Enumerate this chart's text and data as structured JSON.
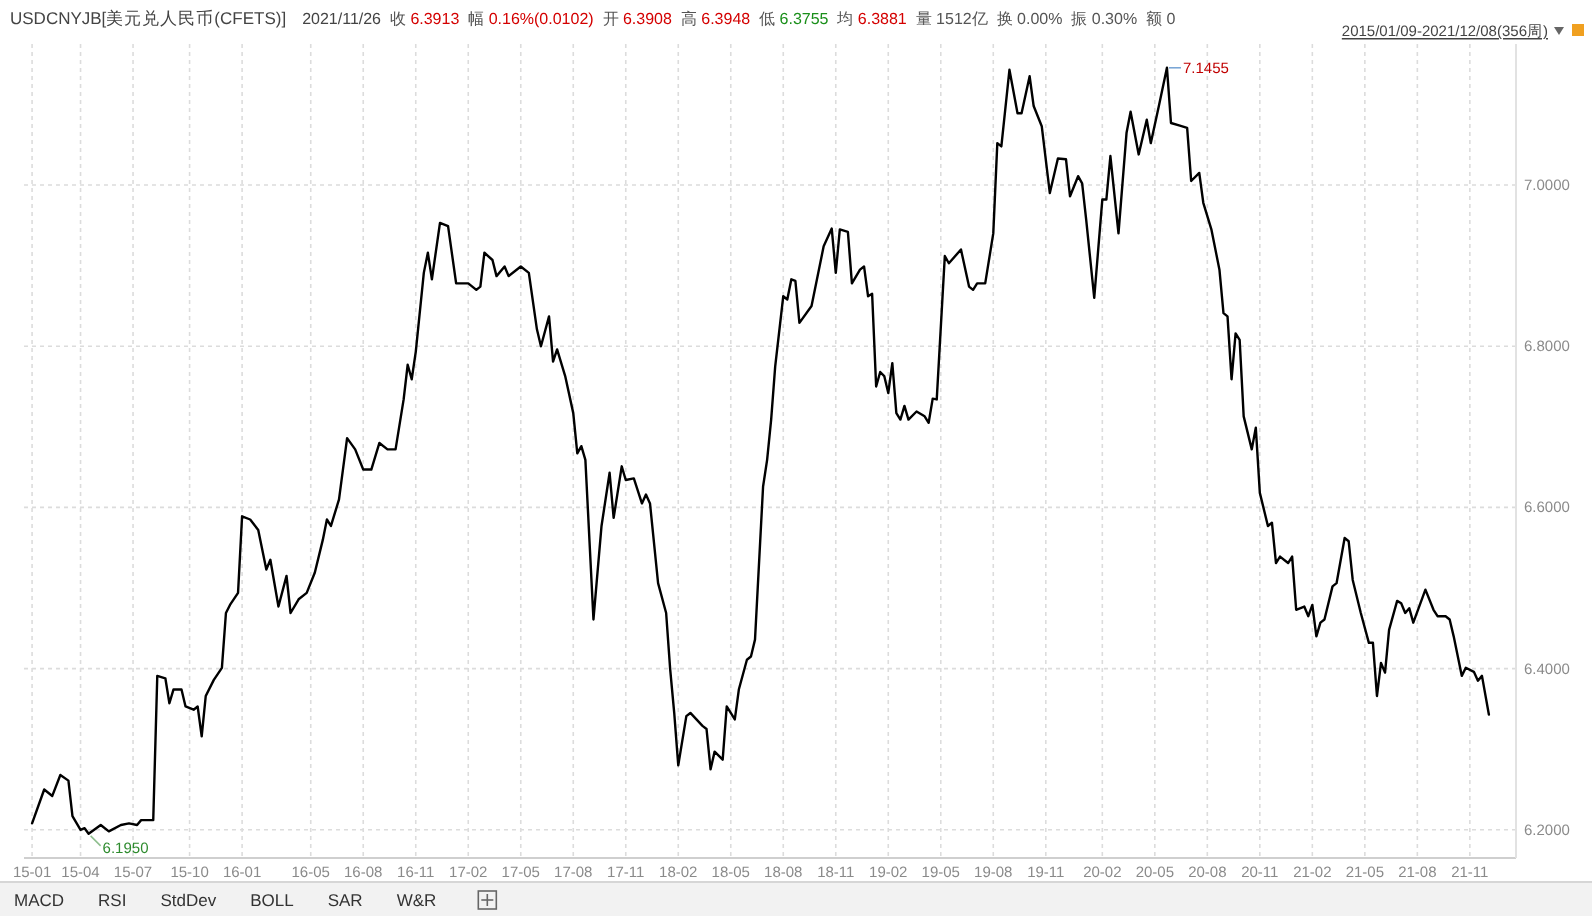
{
  "chart_data": {
    "type": "line",
    "title": "USDCNYJB[美元兑人民币(CFETS)]",
    "subtitle": "2021/11/26  收 6.3913  幅 0.16%(0.0102)  开 6.3908  高 6.3948  低 6.3755  均 6.3881  量 1512亿  换 0.00%  振 0.30%  额 0",
    "annotations": [
      "2015/01/09-2021/12/08(356周)",
      "MACD",
      "RSI",
      "StdDev",
      "BOLL",
      "SAR",
      "W&R",
      {
        "text": "7.1455",
        "x": "2020-05-29",
        "y": 7.1455
      },
      {
        "text": "6.1950",
        "x": "2015-04-17",
        "y": 6.195
      }
    ],
    "x": [
      "2015-01-09",
      "2015-01-30",
      "2015-02-13",
      "2015-02-27",
      "2015-03-13",
      "2015-03-20",
      "2015-04-03",
      "2015-04-10",
      "2015-04-17",
      "2015-05-08",
      "2015-05-22",
      "2015-06-12",
      "2015-06-26",
      "2015-07-10",
      "2015-07-17",
      "2015-08-07",
      "2015-08-14",
      "2015-08-28",
      "2015-09-04",
      "2015-09-11",
      "2015-09-25",
      "2015-10-02",
      "2015-10-16",
      "2015-10-23",
      "2015-10-30",
      "2015-11-06",
      "2015-11-20",
      "2015-12-04",
      "2015-12-11",
      "2015-12-18",
      "2016-01-01",
      "2016-01-08",
      "2016-01-22",
      "2016-02-05",
      "2016-02-19",
      "2016-02-26",
      "2016-03-11",
      "2016-03-25",
      "2016-04-01",
      "2016-04-15",
      "2016-04-29",
      "2016-05-13",
      "2016-05-27",
      "2016-06-03",
      "2016-06-10",
      "2016-06-24",
      "2016-07-08",
      "2016-07-22",
      "2016-08-05",
      "2016-08-19",
      "2016-09-02",
      "2016-09-16",
      "2016-09-30",
      "2016-10-14",
      "2016-10-21",
      "2016-10-28",
      "2016-11-04",
      "2016-11-18",
      "2016-11-25",
      "2016-12-02",
      "2016-12-16",
      "2016-12-30",
      "2017-01-13",
      "2017-02-03",
      "2017-02-17",
      "2017-02-24",
      "2017-03-03",
      "2017-03-17",
      "2017-03-24",
      "2017-04-07",
      "2017-04-14",
      "2017-05-05",
      "2017-05-19",
      "2017-06-02",
      "2017-06-09",
      "2017-06-23",
      "2017-06-30",
      "2017-07-07",
      "2017-07-21",
      "2017-08-04",
      "2017-08-11",
      "2017-08-18",
      "2017-08-25",
      "2017-09-08",
      "2017-09-22",
      "2017-10-06",
      "2017-10-13",
      "2017-10-27",
      "2017-11-03",
      "2017-11-17",
      "2017-12-01",
      "2017-12-08",
      "2017-12-15",
      "2017-12-29",
      "2018-01-12",
      "2018-01-19",
      "2018-01-26",
      "2018-02-02",
      "2018-02-16",
      "2018-02-23",
      "2018-03-16",
      "2018-03-23",
      "2018-03-30",
      "2018-04-06",
      "2018-04-20",
      "2018-04-27",
      "2018-05-11",
      "2018-05-18",
      "2018-06-01",
      "2018-06-08",
      "2018-06-15",
      "2018-06-29",
      "2018-07-06",
      "2018-07-13",
      "2018-07-20",
      "2018-08-03",
      "2018-08-10",
      "2018-08-17",
      "2018-08-24",
      "2018-08-31",
      "2018-09-21",
      "2018-10-12",
      "2018-10-26",
      "2018-11-02",
      "2018-11-09",
      "2018-11-23",
      "2018-11-30",
      "2018-12-14",
      "2018-12-21",
      "2018-12-28",
      "2019-01-04",
      "2019-01-11",
      "2019-01-18",
      "2019-01-25",
      "2019-02-01",
      "2019-02-08",
      "2019-02-15",
      "2019-02-22",
      "2019-03-01",
      "2019-03-08",
      "2019-03-22",
      "2019-04-05",
      "2019-04-12",
      "2019-04-19",
      "2019-04-26",
      "2019-05-10",
      "2019-05-17",
      "2019-06-07",
      "2019-06-21",
      "2019-06-28",
      "2019-07-05",
      "2019-07-19",
      "2019-08-02",
      "2019-08-09",
      "2019-08-16",
      "2019-08-30",
      "2019-09-13",
      "2019-09-20",
      "2019-10-04",
      "2019-10-11",
      "2019-10-25",
      "2019-11-08",
      "2019-11-22",
      "2019-12-06",
      "2019-12-13",
      "2019-12-27",
      "2020-01-03",
      "2020-01-10",
      "2020-01-24",
      "2020-02-07",
      "2020-02-14",
      "2020-02-21",
      "2020-03-06",
      "2020-03-20",
      "2020-03-27",
      "2020-04-10",
      "2020-04-24",
      "2020-05-01",
      "2020-05-15",
      "2020-05-29",
      "2020-06-05",
      "2020-06-19",
      "2020-07-03",
      "2020-07-10",
      "2020-07-24",
      "2020-07-31",
      "2020-08-14",
      "2020-08-28",
      "2020-09-04",
      "2020-09-11",
      "2020-09-18",
      "2020-09-25",
      "2020-10-02",
      "2020-10-09",
      "2020-10-23",
      "2020-10-30",
      "2020-11-06",
      "2020-11-20",
      "2020-11-27",
      "2020-12-04",
      "2020-12-11",
      "2020-12-25",
      "2021-01-01",
      "2021-01-08",
      "2021-01-22",
      "2021-01-29",
      "2021-02-05",
      "2021-02-12",
      "2021-02-19",
      "2021-02-26",
      "2021-03-12",
      "2021-03-19",
      "2021-04-02",
      "2021-04-09",
      "2021-04-16",
      "2021-04-30",
      "2021-05-14",
      "2021-05-21",
      "2021-05-28",
      "2021-06-04",
      "2021-06-11",
      "2021-06-18",
      "2021-07-02",
      "2021-07-09",
      "2021-07-16",
      "2021-07-23",
      "2021-07-30",
      "2021-08-20",
      "2021-09-03",
      "2021-09-10",
      "2021-09-24",
      "2021-10-01",
      "2021-10-08",
      "2021-10-22",
      "2021-10-29",
      "2021-11-12",
      "2021-11-19",
      "2021-11-26",
      "2021-12-08"
    ],
    "values": [
      6.208,
      6.25,
      6.242,
      6.268,
      6.261,
      6.217,
      6.2,
      6.202,
      6.195,
      6.206,
      6.198,
      6.206,
      6.208,
      6.206,
      6.212,
      6.212,
      6.391,
      6.388,
      6.357,
      6.374,
      6.374,
      6.353,
      6.349,
      6.353,
      6.316,
      6.366,
      6.386,
      6.401,
      6.469,
      6.479,
      6.494,
      6.589,
      6.585,
      6.572,
      6.523,
      6.535,
      6.477,
      6.515,
      6.469,
      6.486,
      6.494,
      6.519,
      6.56,
      6.585,
      6.577,
      6.61,
      6.686,
      6.672,
      6.647,
      6.647,
      6.68,
      6.672,
      6.672,
      6.734,
      6.777,
      6.759,
      6.793,
      6.891,
      6.916,
      6.883,
      6.953,
      6.949,
      6.878,
      6.878,
      6.87,
      6.874,
      6.916,
      6.907,
      6.887,
      6.899,
      6.887,
      6.899,
      6.891,
      6.821,
      6.8,
      6.837,
      6.781,
      6.796,
      6.763,
      6.717,
      6.667,
      6.676,
      6.659,
      6.461,
      6.577,
      6.643,
      6.587,
      6.651,
      6.634,
      6.636,
      6.605,
      6.616,
      6.605,
      6.506,
      6.469,
      6.399,
      6.345,
      6.28,
      6.341,
      6.345,
      6.329,
      6.325,
      6.275,
      6.297,
      6.287,
      6.353,
      6.337,
      6.374,
      6.411,
      6.415,
      6.436,
      6.626,
      6.659,
      6.709,
      6.775,
      6.862,
      6.858,
      6.883,
      6.881,
      6.829,
      6.85,
      6.924,
      6.946,
      6.891,
      6.945,
      6.942,
      6.878,
      6.895,
      6.899,
      6.862,
      6.865,
      6.75,
      6.768,
      6.763,
      6.742,
      6.779,
      6.717,
      6.709,
      6.726,
      6.709,
      6.719,
      6.713,
      6.705,
      6.735,
      6.734,
      6.912,
      6.903,
      6.92,
      6.874,
      6.87,
      6.878,
      6.878,
      6.94,
      7.052,
      7.048,
      7.143,
      7.089,
      7.089,
      7.135,
      7.098,
      7.073,
      6.99,
      7.033,
      7.032,
      6.986,
      7.011,
      7.002,
      6.957,
      6.86,
      6.982,
      6.982,
      7.036,
      6.94,
      7.065,
      7.091,
      7.038,
      7.081,
      7.052,
      7.098,
      7.1455,
      7.077,
      7.074,
      7.071,
      7.005,
      7.015,
      6.978,
      6.945,
      6.895,
      6.841,
      6.837,
      6.759,
      6.816,
      6.808,
      6.713,
      6.672,
      6.699,
      6.618,
      6.577,
      6.581,
      6.531,
      6.539,
      6.531,
      6.539,
      6.473,
      6.477,
      6.465,
      6.479,
      6.44,
      6.457,
      6.461,
      6.502,
      6.506,
      6.562,
      6.558,
      6.51,
      6.469,
      6.432,
      6.432,
      6.366,
      6.407,
      6.395,
      6.448,
      6.484,
      6.481,
      6.469,
      6.475,
      6.457,
      6.498,
      6.473,
      6.465,
      6.465,
      6.461,
      6.44,
      6.391,
      6.401,
      6.396,
      6.385,
      6.391,
      6.343
    ],
    "color": "#000000",
    "line_style": "solid",
    "grid": true,
    "xlim": [
      "2014-12-26",
      "2022-01-24"
    ],
    "ylim": [
      6.165,
      7.175
    ],
    "xticks": [
      {
        "value": "2015-01-09",
        "label": "15-01"
      },
      {
        "value": "2015-04-03",
        "label": "15-04"
      },
      {
        "value": "2015-07-03",
        "label": "15-07"
      },
      {
        "value": "2015-10-09",
        "label": "15-10"
      },
      {
        "value": "2016-01-08",
        "label": "16-01"
      },
      {
        "value": "2016-05-06",
        "label": "16-05"
      },
      {
        "value": "2016-08-05",
        "label": "16-08"
      },
      {
        "value": "2016-11-04",
        "label": "16-11"
      },
      {
        "value": "2017-02-03",
        "label": "17-02"
      },
      {
        "value": "2017-05-05",
        "label": "17-05"
      },
      {
        "value": "2017-08-04",
        "label": "17-08"
      },
      {
        "value": "2017-11-03",
        "label": "17-11"
      },
      {
        "value": "2018-02-02",
        "label": "18-02"
      },
      {
        "value": "2018-05-04",
        "label": "18-05"
      },
      {
        "value": "2018-08-03",
        "label": "18-08"
      },
      {
        "value": "2018-11-02",
        "label": "18-11"
      },
      {
        "value": "2019-02-01",
        "label": "19-02"
      },
      {
        "value": "2019-05-03",
        "label": "19-05"
      },
      {
        "value": "2019-08-02",
        "label": "19-08"
      },
      {
        "value": "2019-11-01",
        "label": "19-11"
      },
      {
        "value": "2020-02-07",
        "label": "20-02"
      },
      {
        "value": "2020-05-08",
        "label": "20-05"
      },
      {
        "value": "2020-08-07",
        "label": "20-08"
      },
      {
        "value": "2020-11-06",
        "label": "20-11"
      },
      {
        "value": "2021-02-05",
        "label": "21-02"
      },
      {
        "value": "2021-05-07",
        "label": "21-05"
      },
      {
        "value": "2021-08-06",
        "label": "21-08"
      },
      {
        "value": "2021-11-05",
        "label": "21-11"
      }
    ],
    "yticks": [
      {
        "value": 6.2,
        "label": "6.2000"
      },
      {
        "value": 6.4,
        "label": "6.4000"
      },
      {
        "value": 6.6,
        "label": "6.6000"
      },
      {
        "value": 6.8,
        "label": "6.8000"
      },
      {
        "value": 7.0,
        "label": "7.0000"
      }
    ]
  }
}
